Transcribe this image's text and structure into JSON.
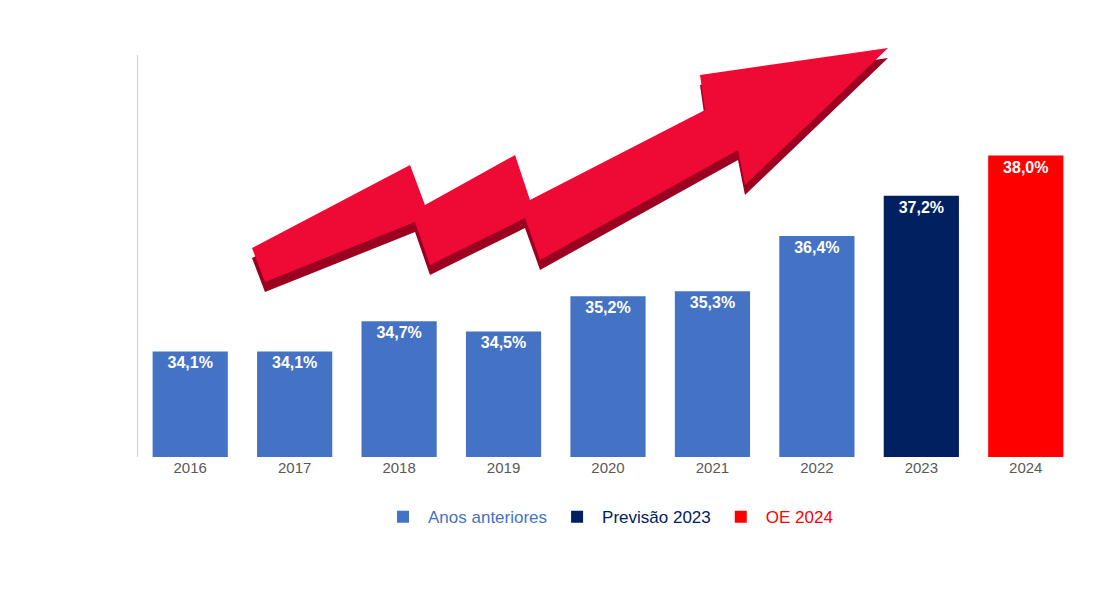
{
  "chart_data": {
    "type": "bar",
    "categories": [
      "2016",
      "2017",
      "2018",
      "2019",
      "2020",
      "2021",
      "2022",
      "2023",
      "2024"
    ],
    "series": [
      {
        "name": "Anos anteriores",
        "color": "#4472c4",
        "values": [
          34.1,
          34.1,
          34.7,
          34.5,
          35.2,
          35.3,
          36.4,
          null,
          null
        ],
        "value_labels": [
          "34,1%",
          "34,1%",
          "34,7%",
          "34,5%",
          "35,2%",
          "35,3%",
          "36,4%",
          null,
          null
        ]
      },
      {
        "name": "Previsão 2023",
        "color": "#002060",
        "values": [
          null,
          null,
          null,
          null,
          null,
          null,
          null,
          37.2,
          null
        ],
        "value_labels": [
          null,
          null,
          null,
          null,
          null,
          null,
          null,
          "37,2%",
          null
        ]
      },
      {
        "name": "OE 2024",
        "color": "#ff0000",
        "values": [
          null,
          null,
          null,
          null,
          null,
          null,
          null,
          null,
          38.0
        ],
        "value_labels": [
          null,
          null,
          null,
          null,
          null,
          null,
          null,
          null,
          "38,0%"
        ]
      }
    ],
    "ylim": [
      32,
      40
    ],
    "data_labels": true,
    "tick_labels": "x",
    "legend": "bottom",
    "grid": false
  }
}
